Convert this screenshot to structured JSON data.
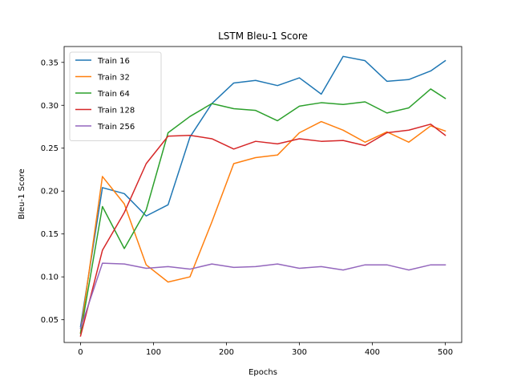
{
  "chart_data": {
    "type": "line",
    "title": "LSTM Bleu-1 Score",
    "xlabel": "Epochs",
    "ylabel": "Bleu-1 Score",
    "xlim": [
      -22.5,
      522.5
    ],
    "ylim": [
      0.0235,
      0.3685
    ],
    "xticks": [
      0,
      100,
      200,
      300,
      400,
      500
    ],
    "yticks": [
      0.05,
      0.1,
      0.15,
      0.2,
      0.25,
      0.3,
      0.35
    ],
    "ytick_labels": [
      "0.05",
      "0.10",
      "0.15",
      "0.20",
      "0.25",
      "0.30",
      "0.35"
    ],
    "grid": false,
    "legend_position": "top-left",
    "x": [
      0,
      30,
      60,
      90,
      120,
      150,
      180,
      210,
      240,
      270,
      300,
      330,
      360,
      390,
      420,
      450,
      480,
      500
    ],
    "series": [
      {
        "name": "Train 16",
        "color": "#1f77b4",
        "values": [
          0.042,
          0.204,
          0.197,
          0.171,
          0.184,
          0.263,
          0.302,
          0.326,
          0.329,
          0.323,
          0.332,
          0.313,
          0.357,
          0.352,
          0.328,
          0.33,
          0.34,
          0.352
        ]
      },
      {
        "name": "Train 32",
        "color": "#ff7f0e",
        "values": [
          0.035,
          0.217,
          0.185,
          0.114,
          0.094,
          0.1,
          0.164,
          0.232,
          0.239,
          0.242,
          0.268,
          0.281,
          0.271,
          0.257,
          0.269,
          0.257,
          0.276,
          0.27
        ]
      },
      {
        "name": "Train 64",
        "color": "#2ca02c",
        "values": [
          0.034,
          0.182,
          0.133,
          0.178,
          0.268,
          0.287,
          0.302,
          0.296,
          0.294,
          0.282,
          0.299,
          0.303,
          0.301,
          0.304,
          0.291,
          0.297,
          0.319,
          0.308
        ]
      },
      {
        "name": "Train 128",
        "color": "#d62728",
        "values": [
          0.031,
          0.131,
          0.175,
          0.232,
          0.264,
          0.265,
          0.261,
          0.249,
          0.258,
          0.255,
          0.261,
          0.258,
          0.259,
          0.253,
          0.268,
          0.271,
          0.278,
          0.265
        ]
      },
      {
        "name": "Train 256",
        "color": "#9467bd",
        "values": [
          0.04,
          0.116,
          0.115,
          0.11,
          0.112,
          0.109,
          0.115,
          0.111,
          0.112,
          0.115,
          0.11,
          0.112,
          0.108,
          0.114,
          0.114,
          0.108,
          0.114,
          0.114
        ]
      }
    ]
  }
}
